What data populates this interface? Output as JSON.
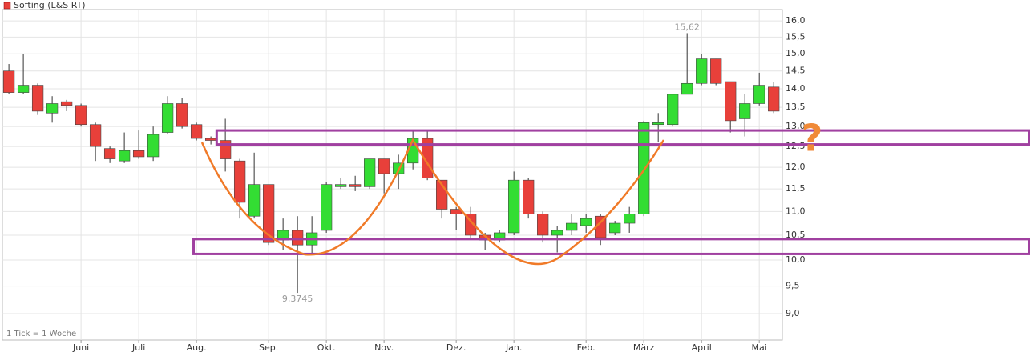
{
  "chart_data": {
    "type": "candlestick",
    "title": "Softing (L&S RT)",
    "note": "1 Tick = 1 Woche",
    "log_scale": true,
    "grid": true,
    "up_color": "#33dd33",
    "down_color": "#e8403a",
    "categories": [
      null,
      null,
      null,
      null,
      null,
      null,
      null,
      null,
      null,
      null,
      null,
      null,
      null,
      null,
      null,
      null,
      null,
      null,
      null,
      null,
      null,
      null,
      null,
      null,
      null,
      null,
      null,
      null,
      null,
      null,
      null,
      null,
      null,
      null,
      null,
      null,
      null,
      null,
      null,
      null,
      null,
      null,
      null,
      null,
      null,
      null,
      null,
      null,
      null,
      null,
      null,
      null,
      null,
      null
    ],
    "series": [
      {
        "name": "Softing (L&S RT)",
        "color": "#e8403a",
        "open": [
          14.5,
          13.9,
          14.1,
          13.35,
          13.65,
          13.55,
          13.05,
          12.45,
          12.15,
          12.4,
          12.25,
          12.85,
          13.6,
          13.05,
          12.7,
          12.65,
          12.15,
          10.9,
          11.6,
          10.4,
          10.6,
          10.3,
          10.6,
          11.55,
          11.6,
          11.55,
          12.2,
          11.85,
          12.1,
          12.7,
          11.7,
          11.05,
          10.95,
          10.5,
          10.4,
          10.55,
          11.7,
          10.95,
          10.5,
          10.6,
          10.7,
          10.9,
          10.55,
          10.75,
          10.95,
          13.05,
          13.05,
          13.85,
          14.15,
          14.85,
          14.2,
          13.2,
          13.6,
          14.05
        ],
        "high": [
          14.7,
          15.0,
          14.15,
          13.8,
          13.7,
          13.6,
          13.1,
          12.5,
          12.85,
          12.9,
          13.0,
          13.8,
          13.75,
          13.1,
          12.75,
          13.2,
          12.2,
          12.35,
          11.6,
          10.85,
          10.9,
          10.9,
          11.65,
          11.75,
          11.8,
          12.2,
          12.2,
          12.3,
          12.9,
          12.9,
          11.7,
          11.1,
          11.1,
          10.55,
          10.6,
          11.9,
          11.75,
          11.0,
          10.7,
          10.95,
          10.95,
          10.95,
          10.8,
          11.1,
          13.15,
          13.35,
          13.85,
          15.62,
          15.0,
          14.85,
          14.2,
          13.85,
          14.45,
          14.2
        ],
        "low": [
          13.85,
          13.85,
          13.3,
          13.1,
          13.4,
          13.0,
          12.15,
          12.1,
          12.1,
          12.2,
          12.15,
          12.8,
          12.95,
          12.65,
          12.55,
          11.9,
          10.85,
          10.85,
          10.3,
          10.2,
          9.3745,
          10.1,
          10.55,
          11.5,
          11.45,
          11.5,
          11.4,
          11.5,
          11.95,
          11.7,
          10.85,
          10.6,
          10.45,
          10.2,
          10.35,
          10.5,
          10.85,
          10.35,
          10.15,
          10.5,
          10.55,
          10.3,
          10.5,
          10.55,
          10.9,
          12.6,
          13.0,
          13.85,
          14.1,
          14.1,
          12.85,
          12.75,
          13.55,
          13.35
        ],
        "close": [
          13.9,
          14.1,
          13.4,
          13.6,
          13.55,
          13.05,
          12.5,
          12.2,
          12.4,
          12.25,
          12.8,
          13.6,
          13.0,
          12.7,
          12.65,
          12.2,
          11.2,
          11.6,
          10.35,
          10.6,
          10.3,
          10.55,
          11.6,
          11.6,
          11.55,
          12.2,
          11.85,
          12.1,
          12.7,
          11.75,
          11.05,
          10.95,
          10.5,
          10.4,
          10.55,
          11.7,
          10.95,
          10.5,
          10.6,
          10.75,
          10.85,
          10.45,
          10.75,
          10.95,
          13.1,
          13.1,
          13.85,
          14.15,
          14.85,
          14.15,
          13.15,
          13.6,
          14.1,
          13.4
        ]
      }
    ],
    "annotations": [
      {
        "label": "15,62",
        "x": 47,
        "y": 15.62
      },
      {
        "label": "9,3745",
        "x": 20,
        "y": 9.3745
      }
    ],
    "zones": [
      {
        "low": 12.55,
        "high": 12.9,
        "color": "#a040a0"
      },
      {
        "low": 10.12,
        "high": 10.42,
        "color": "#a040a0"
      }
    ],
    "question_mark": "?",
    "xlim": [
      -0.45,
      53.6
    ],
    "xticks": [
      {
        "value": 5,
        "label": "Juni"
      },
      {
        "value": 9,
        "label": "Juli"
      },
      {
        "value": 13,
        "label": "Aug."
      },
      {
        "value": 18,
        "label": "Sep."
      },
      {
        "value": 22,
        "label": "Okt."
      },
      {
        "value": 26,
        "label": "Nov."
      },
      {
        "value": 31,
        "label": "Dez."
      },
      {
        "value": 35,
        "label": "Jan."
      },
      {
        "value": 40,
        "label": "Feb."
      },
      {
        "value": 44,
        "label": "März"
      },
      {
        "value": 48,
        "label": "April"
      },
      {
        "value": 52,
        "label": "Mai"
      }
    ],
    "ylim": [
      8.545,
      16.36
    ],
    "yticks": [
      {
        "value": 9,
        "label": "9,0"
      },
      {
        "value": 9.5,
        "label": "9,5"
      },
      {
        "value": 10,
        "label": "10,0"
      },
      {
        "value": 10.5,
        "label": "10,5"
      },
      {
        "value": 11,
        "label": "11,0"
      },
      {
        "value": 11.5,
        "label": "11,5"
      },
      {
        "value": 12,
        "label": "12,0"
      },
      {
        "value": 12.5,
        "label": "12,5"
      },
      {
        "value": 13,
        "label": "13,0"
      },
      {
        "value": 13.5,
        "label": "13,5"
      },
      {
        "value": 14,
        "label": "14,0"
      },
      {
        "value": 14.5,
        "label": "14,5"
      },
      {
        "value": 15,
        "label": "15,0"
      },
      {
        "value": 15.5,
        "label": "15,5"
      },
      {
        "value": 16,
        "label": "16,0"
      }
    ]
  }
}
